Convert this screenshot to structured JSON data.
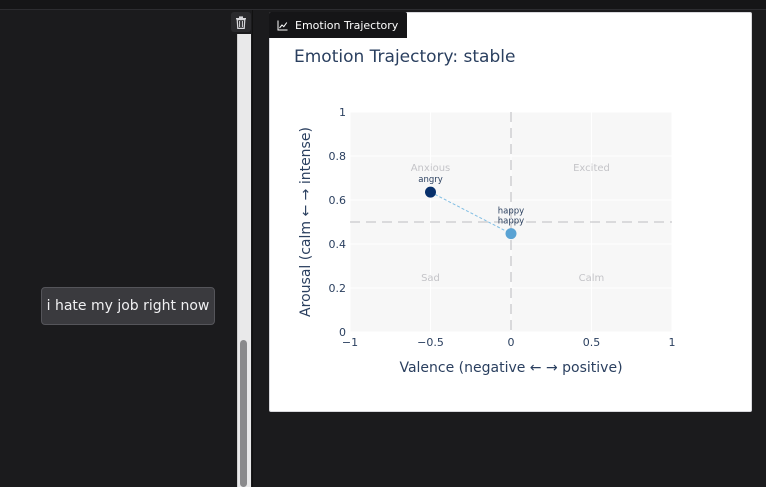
{
  "panel": {
    "title": "Emotion Trajectory",
    "icon": "chart-icon"
  },
  "chat": {
    "message": "i hate my job right now",
    "trash_icon": "trash-icon"
  },
  "chart_data": {
    "type": "scatter",
    "title": "Emotion Trajectory: stable",
    "xlabel": "Valence (negative ← → positive)",
    "ylabel": "Arousal (calm ← → intense)",
    "xlim": [
      -1,
      1
    ],
    "ylim": [
      0,
      1
    ],
    "x_ticks": [
      -1,
      -0.5,
      0,
      0.5,
      1
    ],
    "x_tick_labels": [
      "−1",
      "−0.5",
      "0",
      "0.5",
      "1"
    ],
    "y_ticks": [
      0,
      0.2,
      0.4,
      0.6,
      0.8,
      1
    ],
    "y_tick_labels": [
      "0",
      "0.2",
      "0.4",
      "0.6",
      "0.8",
      "1"
    ],
    "grid": true,
    "reference_lines": {
      "x": 0,
      "y": 0.5
    },
    "quadrant_labels": [
      {
        "text": "Anxious",
        "x": -0.5,
        "y": 0.75
      },
      {
        "text": "Excited",
        "x": 0.5,
        "y": 0.75
      },
      {
        "text": "Sad",
        "x": -0.5,
        "y": 0.25
      },
      {
        "text": "Calm",
        "x": 0.5,
        "y": 0.25
      }
    ],
    "points": [
      {
        "label": "angry",
        "x": -0.5,
        "y": 0.636,
        "color": "#08306b"
      },
      {
        "label": "happy",
        "x": 0.0,
        "y": 0.447,
        "color": "#5aa3d4"
      }
    ],
    "annotations": [
      {
        "text": "happy",
        "x": 0.0,
        "y": 0.552
      }
    ],
    "trajectory_color": "#7fbde3"
  }
}
